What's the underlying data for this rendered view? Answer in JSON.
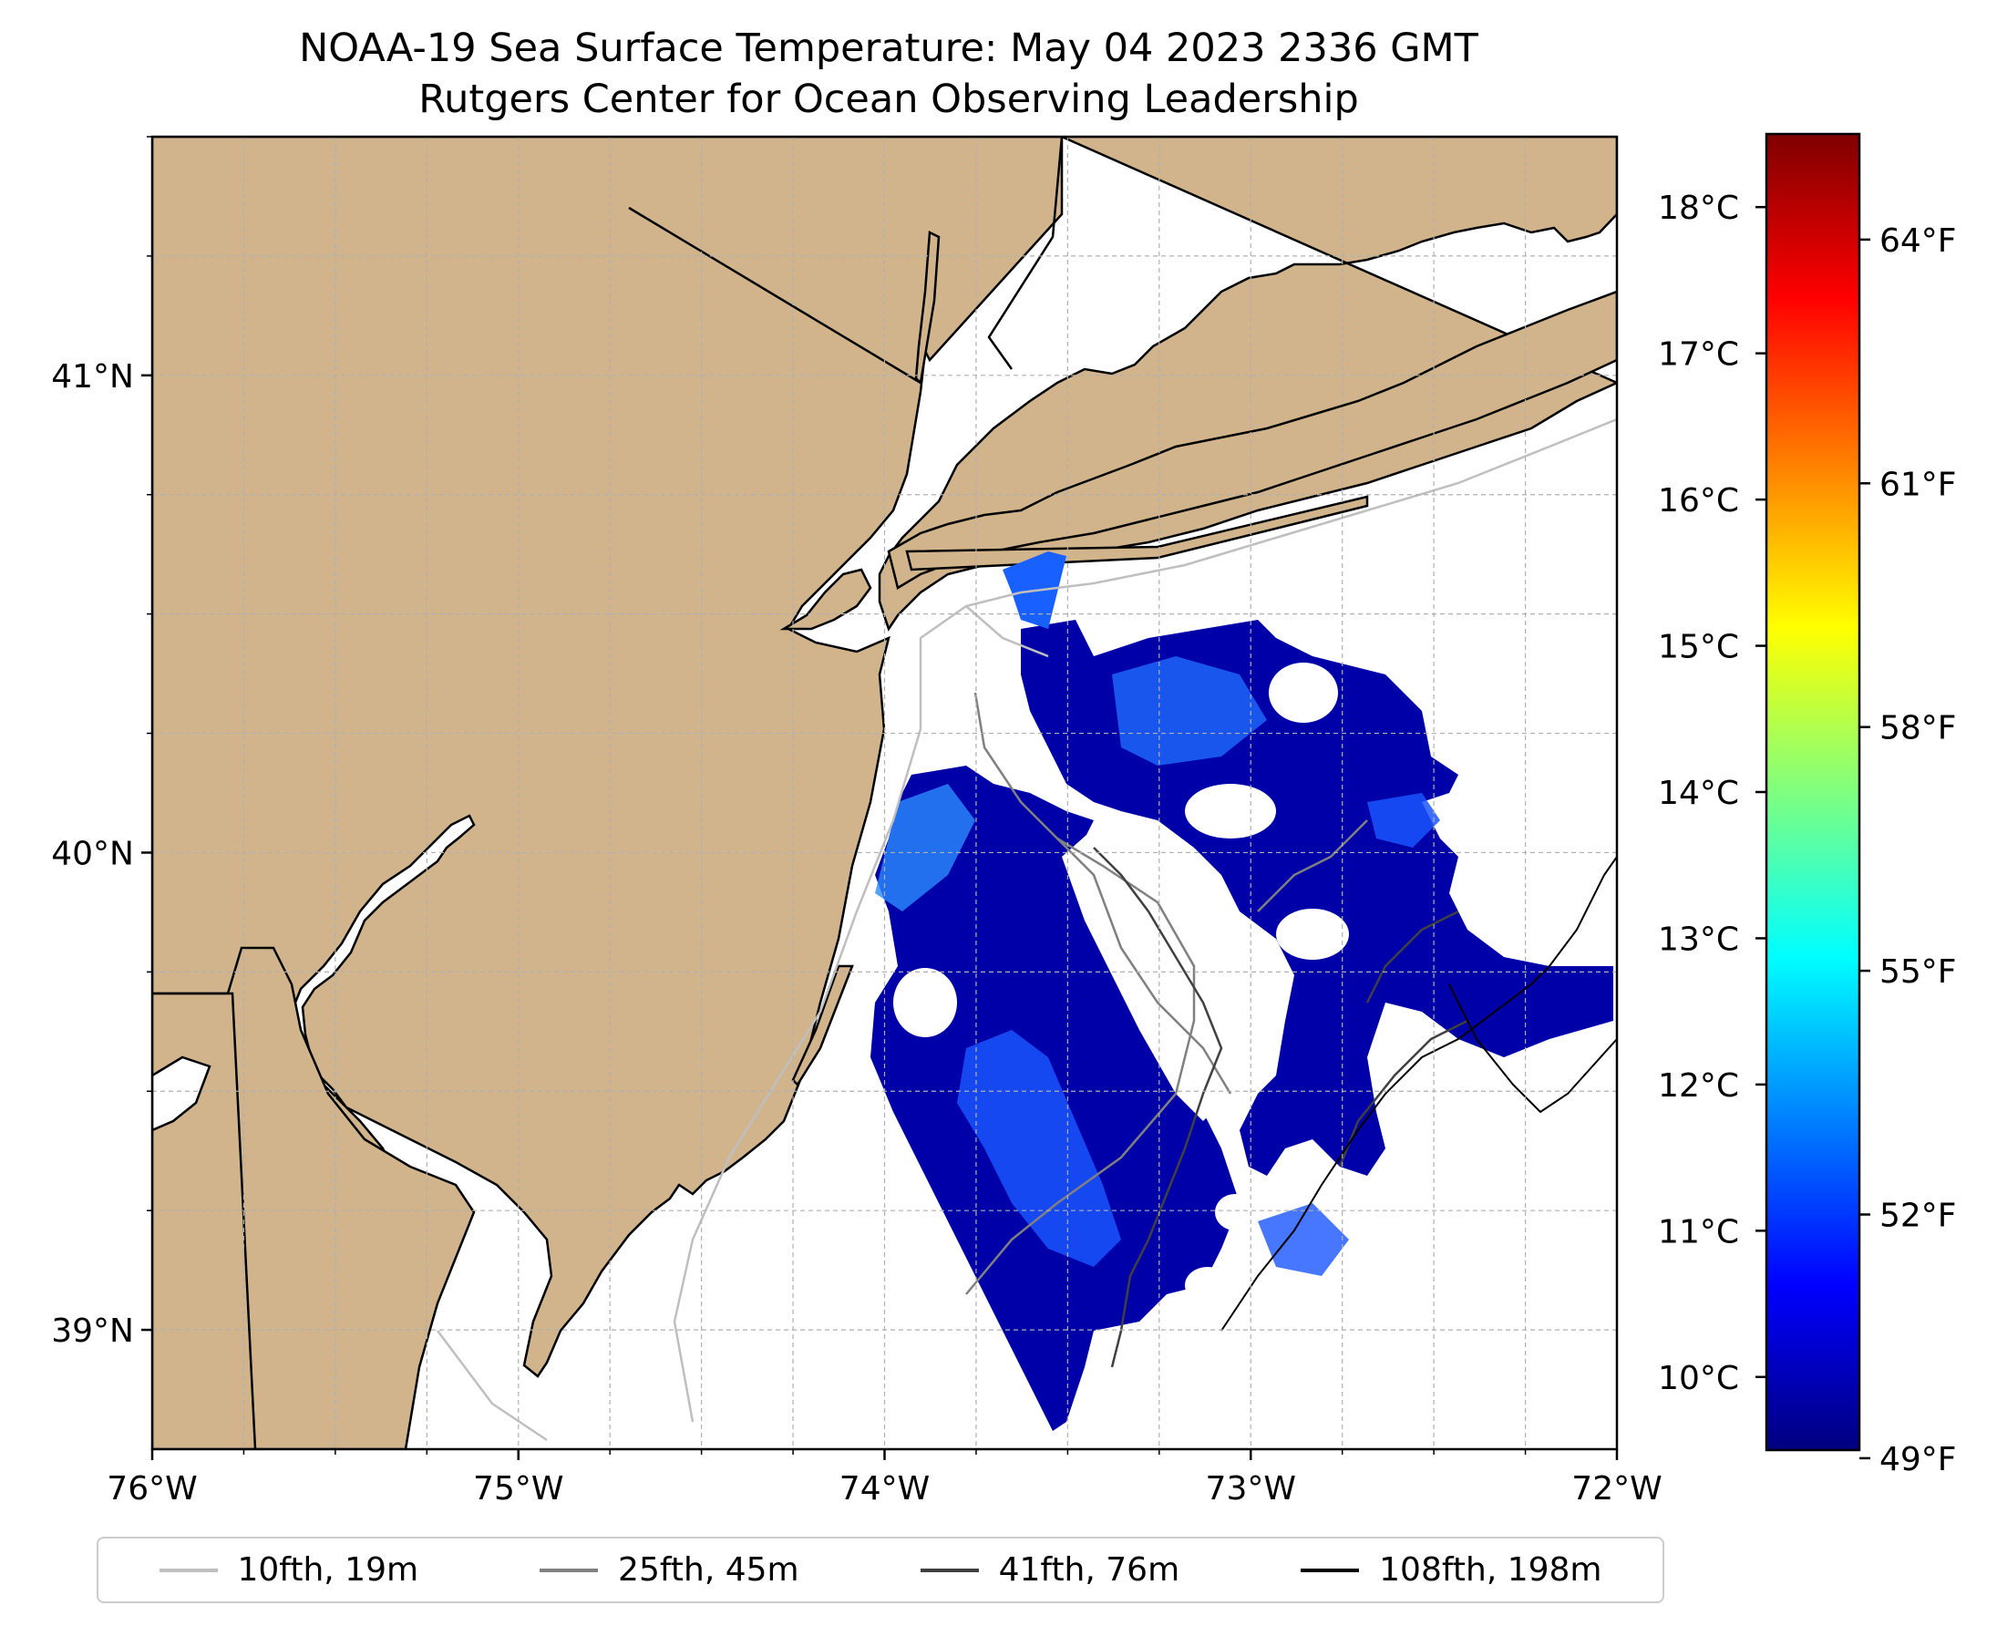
{
  "title": {
    "line1": "NOAA-19 Sea Surface Temperature: May 04 2023 2336 GMT",
    "line2": "Rutgers Center for Ocean Observing Leadership"
  },
  "map": {
    "extent": {
      "lon_min": -76.0,
      "lon_max": -72.0,
      "lat_min": 38.75,
      "lat_max": 41.5
    },
    "lon_ticks": [
      {
        "value": -76,
        "label": "76°W"
      },
      {
        "value": -75,
        "label": "75°W"
      },
      {
        "value": -74,
        "label": "74°W"
      },
      {
        "value": -73,
        "label": "73°W"
      },
      {
        "value": -72,
        "label": "72°W"
      }
    ],
    "lat_ticks": [
      {
        "value": 41,
        "label": "41°N"
      },
      {
        "value": 40,
        "label": "40°N"
      },
      {
        "value": 39,
        "label": "39°N"
      }
    ],
    "colors": {
      "land": "#d2b48c",
      "ocean": "#ffffff",
      "border": "#000000",
      "grid": "#b0b0b0"
    }
  },
  "colorbar": {
    "colormap": "jet",
    "celsius_range": [
      9.5,
      18.5
    ],
    "celsius_ticks": [
      {
        "value": 10,
        "label": "10°C"
      },
      {
        "value": 11,
        "label": "11°C"
      },
      {
        "value": 12,
        "label": "12°C"
      },
      {
        "value": 13,
        "label": "13°C"
      },
      {
        "value": 14,
        "label": "14°C"
      },
      {
        "value": 15,
        "label": "15°C"
      },
      {
        "value": 16,
        "label": "16°C"
      },
      {
        "value": 17,
        "label": "17°C"
      },
      {
        "value": 18,
        "label": "18°C"
      }
    ],
    "fahrenheit_ticks": [
      {
        "value": 49,
        "label": "49°F"
      },
      {
        "value": 52,
        "label": "52°F"
      },
      {
        "value": 55,
        "label": "55°F"
      },
      {
        "value": 58,
        "label": "58°F"
      },
      {
        "value": 61,
        "label": "61°F"
      },
      {
        "value": 64,
        "label": "64°F"
      }
    ],
    "stops": [
      "#00007f",
      "#0000ff",
      "#007fff",
      "#00ffff",
      "#7fff7f",
      "#ffff00",
      "#ff7f00",
      "#ff0000",
      "#7f0000"
    ]
  },
  "legend": {
    "entries": [
      {
        "label": "10fth, 19m",
        "color": "#bfbfbf"
      },
      {
        "label": "25fth, 45m",
        "color": "#808080"
      },
      {
        "label": "41fth, 76m",
        "color": "#404040"
      },
      {
        "label": "108fth, 198m",
        "color": "#000000"
      }
    ]
  }
}
